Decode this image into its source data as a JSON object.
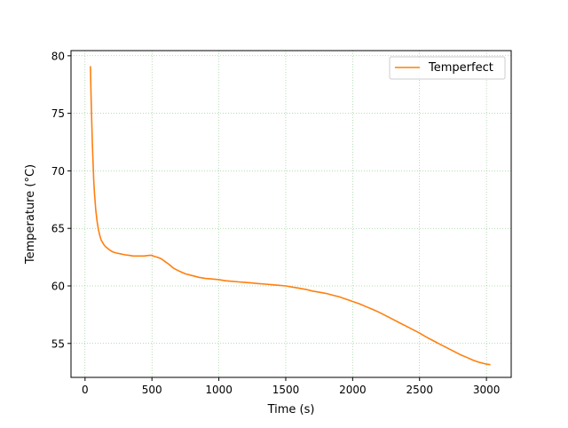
{
  "chart_data": {
    "type": "line",
    "title": "",
    "xlabel": "Time (s)",
    "ylabel": "Temperature (°C)",
    "xlim": [
      -105,
      3185
    ],
    "ylim": [
      52.05,
      80.45
    ],
    "xticks": [
      0,
      500,
      1000,
      1500,
      2000,
      2500,
      3000
    ],
    "yticks": [
      55,
      60,
      65,
      70,
      75,
      80
    ],
    "grid": true,
    "grid_color": "#2ca02c",
    "legend": "top-right",
    "series": [
      {
        "name": "Temperfect",
        "color": "#ff7f0e",
        "x": [
          40,
          45,
          50,
          55,
          60,
          65,
          70,
          80,
          90,
          100,
          110,
          120,
          130,
          140,
          150,
          160,
          170,
          180,
          200,
          220,
          240,
          260,
          280,
          300,
          330,
          360,
          400,
          440,
          480,
          500,
          520,
          540,
          570,
          600,
          630,
          660,
          700,
          750,
          800,
          850,
          900,
          950,
          1000,
          1050,
          1100,
          1150,
          1200,
          1250,
          1300,
          1350,
          1400,
          1450,
          1500,
          1550,
          1600,
          1650,
          1700,
          1750,
          1800,
          1850,
          1900,
          1950,
          2000,
          2050,
          2100,
          2150,
          2200,
          2250,
          2300,
          2350,
          2400,
          2450,
          2500,
          2550,
          2600,
          2650,
          2700,
          2750,
          2800,
          2850,
          2900,
          2950,
          3000,
          3030
        ],
        "y": [
          79.1,
          76.5,
          74.2,
          72.3,
          70.6,
          69.2,
          68.1,
          66.6,
          65.6,
          64.9,
          64.4,
          64.0,
          63.8,
          63.6,
          63.45,
          63.35,
          63.25,
          63.15,
          63.0,
          62.9,
          62.85,
          62.8,
          62.75,
          62.7,
          62.65,
          62.6,
          62.6,
          62.6,
          62.65,
          62.65,
          62.55,
          62.5,
          62.35,
          62.1,
          61.85,
          61.55,
          61.3,
          61.05,
          60.9,
          60.75,
          60.65,
          60.6,
          60.55,
          60.45,
          60.4,
          60.35,
          60.3,
          60.25,
          60.2,
          60.15,
          60.1,
          60.05,
          60.0,
          59.9,
          59.8,
          59.7,
          59.55,
          59.45,
          59.35,
          59.2,
          59.05,
          58.85,
          58.65,
          58.45,
          58.2,
          57.95,
          57.7,
          57.4,
          57.1,
          56.8,
          56.5,
          56.2,
          55.9,
          55.55,
          55.25,
          54.95,
          54.65,
          54.35,
          54.05,
          53.8,
          53.55,
          53.35,
          53.2,
          53.15
        ]
      }
    ]
  }
}
